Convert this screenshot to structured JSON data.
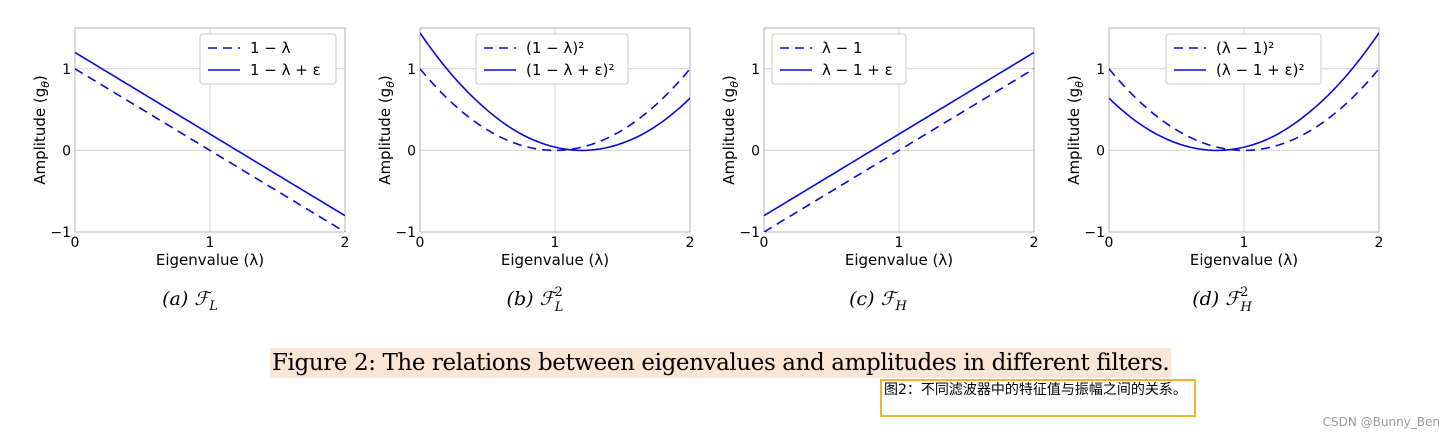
{
  "chart_data": [
    {
      "type": "line",
      "subcaption": "(a) ℱ",
      "subcaption_sub": "L",
      "subcaption_sup": "",
      "xlabel": "Eigenvalue (λ)",
      "ylabel": "Amplitude (g",
      "ylabel_sub": "θ",
      "ylabel_end": ")",
      "xlim": [
        0,
        2
      ],
      "ylim": [
        -1,
        1.5
      ],
      "xticks": [
        "0",
        "1",
        "2"
      ],
      "yticks": [
        "−1",
        "0",
        "1"
      ],
      "legend_loc": "top-right",
      "series": [
        {
          "name": "1 − λ",
          "style": "dashed",
          "x": [
            0,
            2
          ],
          "y": [
            1.0,
            -1.0
          ]
        },
        {
          "name": "1 − λ + ε",
          "style": "solid",
          "x": [
            0,
            2
          ],
          "y": [
            1.2,
            -0.8
          ]
        }
      ]
    },
    {
      "type": "line",
      "subcaption": "(b) ℱ",
      "subcaption_sub": "L",
      "subcaption_sup": "2",
      "xlabel": "Eigenvalue (λ)",
      "ylabel": "Amplitude (g",
      "ylabel_sub": "θ",
      "ylabel_end": ")",
      "xlim": [
        0,
        2
      ],
      "ylim": [
        -1,
        1.5
      ],
      "xticks": [
        "0",
        "1",
        "2"
      ],
      "yticks": [
        "−1",
        "0",
        "1"
      ],
      "legend_loc": "top-right",
      "series": [
        {
          "name": "(1 − λ)²",
          "style": "dashed",
          "x": [
            0,
            0.25,
            0.5,
            0.75,
            1.0,
            1.25,
            1.5,
            1.75,
            2.0
          ],
          "y": [
            1.0,
            0.5625,
            0.25,
            0.0625,
            0.0,
            0.0625,
            0.25,
            0.5625,
            1.0
          ]
        },
        {
          "name": "(1 − λ + ε)²",
          "style": "solid",
          "x": [
            0,
            0.25,
            0.5,
            0.75,
            1.0,
            1.2,
            1.5,
            1.75,
            2.0
          ],
          "y": [
            1.44,
            0.9,
            0.49,
            0.2,
            0.04,
            0.0,
            0.09,
            0.3,
            0.64
          ]
        }
      ]
    },
    {
      "type": "line",
      "subcaption": "(c) ℱ",
      "subcaption_sub": "H",
      "subcaption_sup": "",
      "xlabel": "Eigenvalue (λ)",
      "ylabel": "Amplitude (g",
      "ylabel_sub": "θ",
      "ylabel_end": ")",
      "xlim": [
        0,
        2
      ],
      "ylim": [
        -1,
        1.5
      ],
      "xticks": [
        "0",
        "1",
        "2"
      ],
      "yticks": [
        "−1",
        "0",
        "1"
      ],
      "legend_loc": "top-left",
      "series": [
        {
          "name": "λ − 1",
          "style": "dashed",
          "x": [
            0,
            2
          ],
          "y": [
            -1.0,
            1.0
          ]
        },
        {
          "name": "λ − 1 + ε",
          "style": "solid",
          "x": [
            0,
            2
          ],
          "y": [
            -0.8,
            1.2
          ]
        }
      ]
    },
    {
      "type": "line",
      "subcaption": "(d) ℱ",
      "subcaption_sub": "H",
      "subcaption_sup": "2",
      "xlabel": "Eigenvalue (λ)",
      "ylabel": "Amplitude (g",
      "ylabel_sub": "θ",
      "ylabel_end": ")",
      "xlim": [
        0,
        2
      ],
      "ylim": [
        -1,
        1.5
      ],
      "xticks": [
        "0",
        "1",
        "2"
      ],
      "yticks": [
        "−1",
        "0",
        "1"
      ],
      "legend_loc": "top-center",
      "series": [
        {
          "name": "(λ − 1)²",
          "style": "dashed",
          "x": [
            0,
            0.25,
            0.5,
            0.75,
            1.0,
            1.25,
            1.5,
            1.75,
            2.0
          ],
          "y": [
            1.0,
            0.5625,
            0.25,
            0.0625,
            0.0,
            0.0625,
            0.25,
            0.5625,
            1.0
          ]
        },
        {
          "name": "(λ − 1 + ε)²",
          "style": "solid",
          "x": [
            0,
            0.25,
            0.5,
            0.8,
            1.0,
            1.25,
            1.5,
            1.75,
            2.0
          ],
          "y": [
            0.64,
            0.3,
            0.09,
            0.0,
            0.04,
            0.2,
            0.49,
            0.9,
            1.44
          ]
        }
      ]
    }
  ],
  "colors": {
    "line": "#0a0adb",
    "grid": "#d4d4d4"
  },
  "caption": "Figure 2: The relations between eigenvalues and amplitudes in different filters.",
  "translation": "图2：不同滤波器中的特征值与振幅之间的关系。",
  "watermark": "CSDN @Bunny_Ben"
}
